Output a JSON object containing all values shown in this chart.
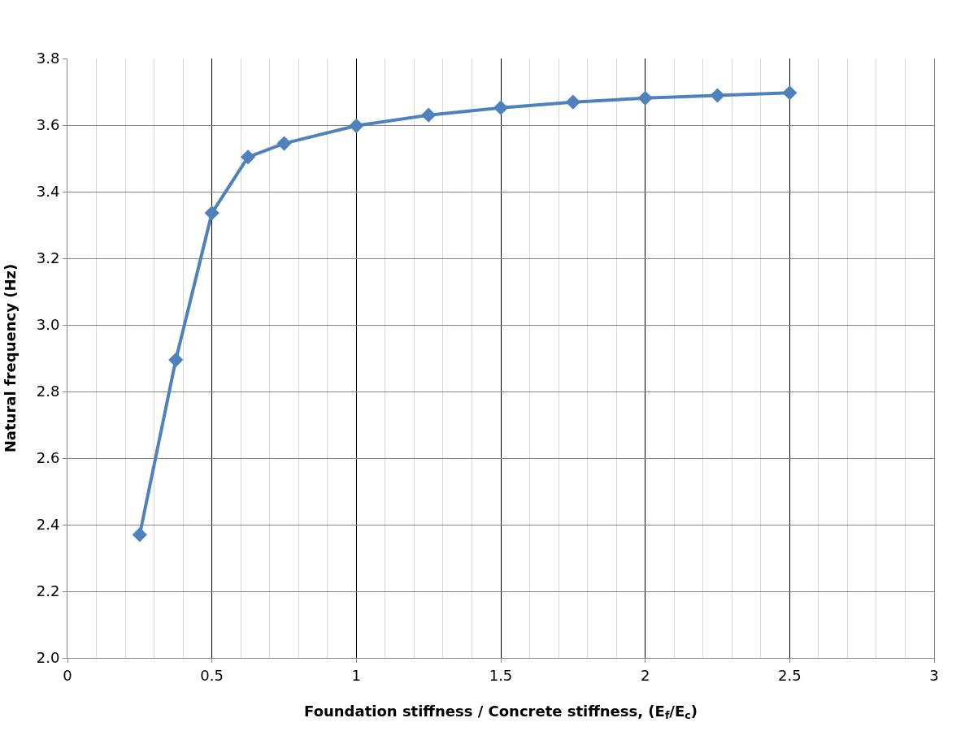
{
  "chart_data": {
    "type": "line",
    "xlabel": "Foundation stiffness / Concrete stiffness, (E$_{f}$/E$_{c}$)",
    "ylabel": "Natural frequency (Hz)",
    "x": [
      0.25,
      0.375,
      0.5,
      0.625,
      0.75,
      1,
      1.25,
      1.5,
      1.75,
      2,
      2.25,
      2.5
    ],
    "series": [
      {
        "color": "#4f81bd",
        "values": [
          2.37,
          2.895,
          3.336,
          3.504,
          3.545,
          3.598,
          3.63,
          3.652,
          3.669,
          3.681,
          3.689,
          3.697
        ]
      }
    ],
    "xlim": [
      0,
      3
    ],
    "xticks": [
      0,
      {
        "value": 0.5,
        "label": "0.5"
      },
      1,
      {
        "value": 1.5,
        "label": "1.5"
      },
      2,
      {
        "value": 2.5,
        "label": "2.5"
      },
      3
    ],
    "ylim": [
      2.0,
      3.8
    ],
    "yticks": [
      {
        "value": 2.0,
        "label": "2.0"
      },
      2.2,
      2.4,
      2.6,
      2.8,
      {
        "value": 3.0,
        "label": "3.0"
      },
      3.2,
      3.4,
      3.6,
      3.8
    ],
    "grid": true,
    "marker": "diamond",
    "line_style": "solid"
  }
}
